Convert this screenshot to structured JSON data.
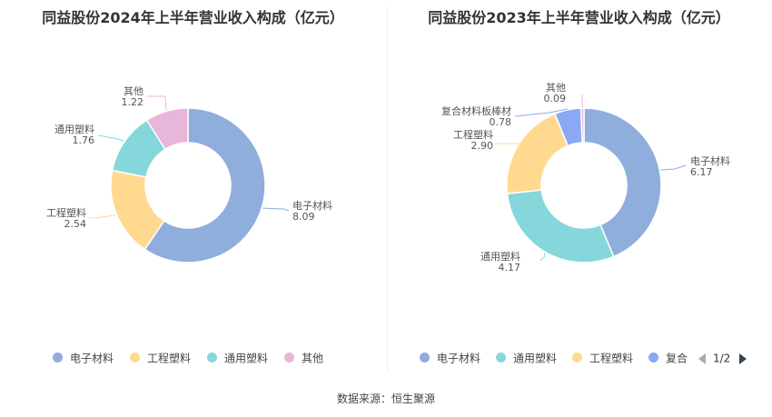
{
  "chart_data": [
    {
      "type": "pie",
      "title": "同益股份2024年上半年营业收入构成（亿元）",
      "slices": [
        {
          "name": "电子材料",
          "value": 8.09,
          "value_text": "8.09",
          "color": "#8faedb"
        },
        {
          "name": "工程塑料",
          "value": 2.54,
          "value_text": "2.54",
          "color": "#ffd98f"
        },
        {
          "name": "通用塑料",
          "value": 1.76,
          "value_text": "1.76",
          "color": "#86d7db"
        },
        {
          "name": "其他",
          "value": 1.22,
          "value_text": "1.22",
          "color": "#e8b6d8"
        }
      ],
      "legend": [
        "电子材料",
        "工程塑料",
        "通用塑料",
        "其他"
      ],
      "legend_position": "bottom"
    },
    {
      "type": "pie",
      "title": "同益股份2023年上半年营业收入构成（亿元）",
      "slices": [
        {
          "name": "电子材料",
          "value": 6.17,
          "value_text": "6.17",
          "color": "#8faedb"
        },
        {
          "name": "通用塑料",
          "value": 4.17,
          "value_text": "4.17",
          "color": "#86d7db"
        },
        {
          "name": "工程塑料",
          "value": 2.9,
          "value_text": "2.90",
          "color": "#ffd98f"
        },
        {
          "name": "复合材料板棒材",
          "value": 0.78,
          "value_text": "0.78",
          "color": "#8aa8f5"
        },
        {
          "name": "其他",
          "value": 0.09,
          "value_text": "0.09",
          "color": "#e8b6d8"
        }
      ],
      "legend": [
        "电子材料",
        "通用塑料",
        "工程塑料",
        "复合"
      ],
      "legend_position": "bottom",
      "legend_pager": "1/2"
    }
  ],
  "source": "数据来源：恒生聚源"
}
